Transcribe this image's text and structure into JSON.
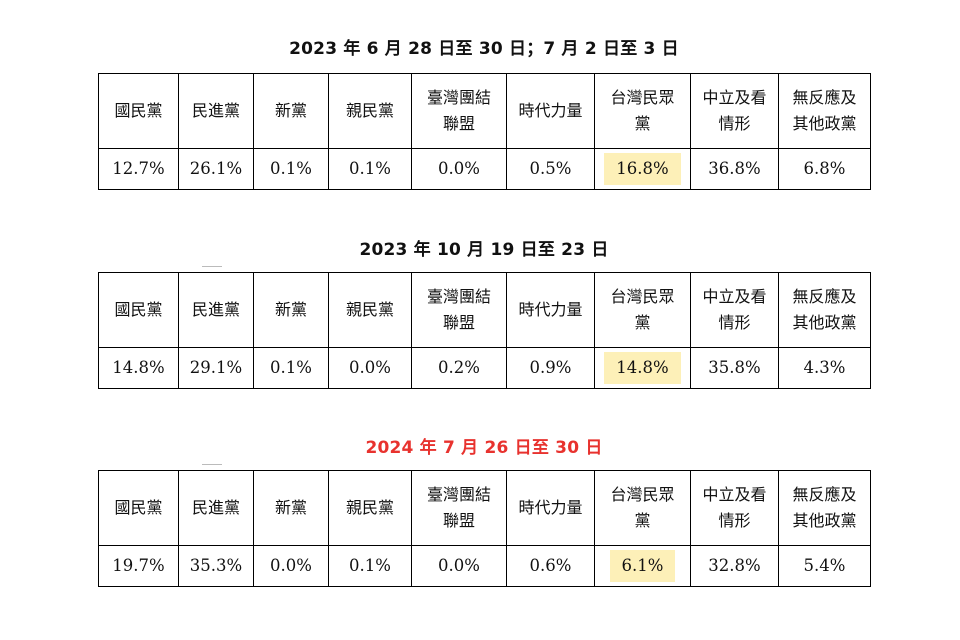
{
  "tables": [
    {
      "title": "2023 年 6 月 28 日至 30 日；7 月 2 日至 3 日",
      "title_color": "#111111",
      "values": [
        "12.7%",
        "26.1%",
        "0.1%",
        "0.1%",
        "0.0%",
        "0.5%",
        "16.8%",
        "36.8%",
        "6.8%"
      ]
    },
    {
      "title": "2023 年 10 月 19 日至 23 日",
      "title_color": "#111111",
      "values": [
        "14.8%",
        "29.1%",
        "0.1%",
        "0.0%",
        "0.2%",
        "0.9%",
        "14.8%",
        "35.8%",
        "4.3%"
      ]
    },
    {
      "title": "2024 年 7 月 26 日至 30 日",
      "title_color": "#e8322e",
      "values": [
        "19.7%",
        "35.3%",
        "0.0%",
        "0.1%",
        "0.0%",
        "0.6%",
        "6.1%",
        "32.8%",
        "5.4%"
      ]
    }
  ],
  "headers": [
    [
      "國民黨"
    ],
    [
      "民進黨"
    ],
    [
      "新黨"
    ],
    [
      "親民黨"
    ],
    [
      "臺灣團結",
      "聯盟"
    ],
    [
      "時代力量"
    ],
    [
      "台灣民眾",
      "黨"
    ],
    [
      "中立及看",
      "情形"
    ],
    [
      "無反應及",
      "其他政黨"
    ]
  ],
  "highlight_column": 6,
  "highlight_color": "#fdf0b8"
}
